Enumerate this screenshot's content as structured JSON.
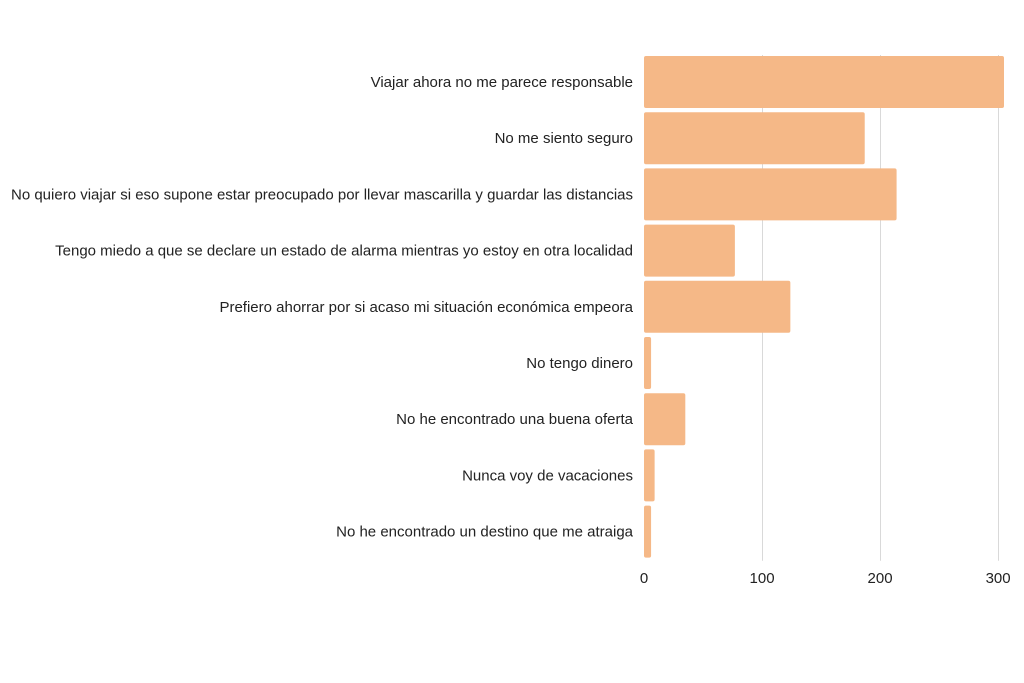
{
  "chart_data": {
    "type": "bar",
    "orientation": "horizontal",
    "categories": [
      "Viajar ahora no me parece responsable",
      "No me siento seguro",
      "No quiero viajar si eso supone estar preocupado por llevar mascarilla y guardar las distancias",
      "Tengo miedo a que se declare un estado de alarma mientras yo estoy en otra localidad",
      "Prefiero ahorrar por si acaso mi situación económica empeora",
      "No tengo dinero",
      "No he encontrado una buena oferta",
      "Nunca voy de vacaciones",
      "No he encontrado un destino que me atraiga"
    ],
    "values": [
      305,
      187,
      214,
      77,
      124,
      6,
      35,
      9,
      6
    ],
    "xlim": [
      0,
      305
    ],
    "xticks": [
      0,
      100,
      200,
      300
    ],
    "tick_labels": [
      "0",
      "100",
      "200",
      "300"
    ],
    "grid": true,
    "bar_color": "#F5B887",
    "grid_color": "#d9d9d9"
  }
}
